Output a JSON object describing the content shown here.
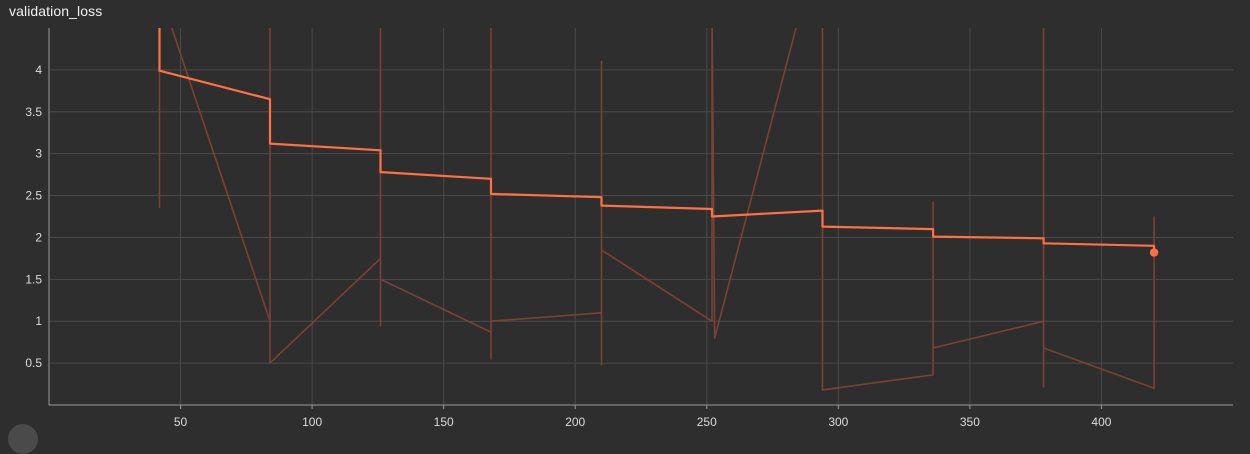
{
  "chart_data": {
    "type": "line",
    "title": "validation_loss",
    "xlabel": "",
    "ylabel": "",
    "xlim": [
      0,
      450
    ],
    "ylim": [
      0,
      4.5
    ],
    "x_ticks": [
      50,
      100,
      150,
      200,
      250,
      300,
      350,
      400
    ],
    "y_ticks": [
      0.5,
      1,
      1.5,
      2,
      2.5,
      3,
      3.5,
      4
    ],
    "grid": true,
    "legend": "none",
    "colors": {
      "smoothed": "#ff7043",
      "raw": "#7a4233",
      "background": "#2e2e2e",
      "grid": "#4a4a4a"
    },
    "series": [
      {
        "role": "smoothed",
        "points": [
          [
            42,
            4.9
          ],
          [
            42,
            3.99
          ],
          [
            84,
            3.65
          ],
          [
            84,
            3.12
          ],
          [
            126,
            3.04
          ],
          [
            126,
            2.78
          ],
          [
            168,
            2.7
          ],
          [
            168,
            2.52
          ],
          [
            210,
            2.48
          ],
          [
            210,
            2.38
          ],
          [
            252,
            2.34
          ],
          [
            252,
            2.25
          ],
          [
            294,
            2.32
          ],
          [
            294,
            2.13
          ],
          [
            336,
            2.1
          ],
          [
            336,
            2.01
          ],
          [
            378,
            1.99
          ],
          [
            378,
            1.93
          ],
          [
            420,
            1.9
          ],
          [
            420,
            1.82
          ]
        ]
      },
      {
        "role": "raw",
        "points": [
          [
            42,
            2.35
          ],
          [
            42,
            4.75
          ],
          [
            44,
            4.75
          ],
          [
            84,
            1.0
          ],
          [
            84,
            4.75
          ],
          [
            84,
            0.5
          ],
          [
            126,
            1.75
          ],
          [
            126,
            0.95
          ],
          [
            126,
            4.75
          ],
          [
            126,
            1.5
          ],
          [
            168,
            0.87
          ],
          [
            168,
            4.75
          ],
          [
            168,
            0.55
          ],
          [
            168,
            1.0
          ],
          [
            210,
            1.1
          ],
          [
            210,
            4.1
          ],
          [
            210,
            0.48
          ],
          [
            210,
            1.85
          ],
          [
            252,
            1.0
          ],
          [
            252,
            4.75
          ],
          [
            253,
            0.8
          ],
          [
            286,
            4.75
          ],
          [
            294,
            4.75
          ],
          [
            294,
            0.18
          ],
          [
            336,
            0.36
          ],
          [
            336,
            2.42
          ],
          [
            336,
            0.68
          ],
          [
            378,
            1.0
          ],
          [
            378,
            4.75
          ],
          [
            378,
            0.22
          ],
          [
            378,
            0.68
          ],
          [
            420,
            0.2
          ],
          [
            420,
            2.25
          ]
        ]
      }
    ],
    "last_point": [
      420,
      1.82
    ]
  }
}
